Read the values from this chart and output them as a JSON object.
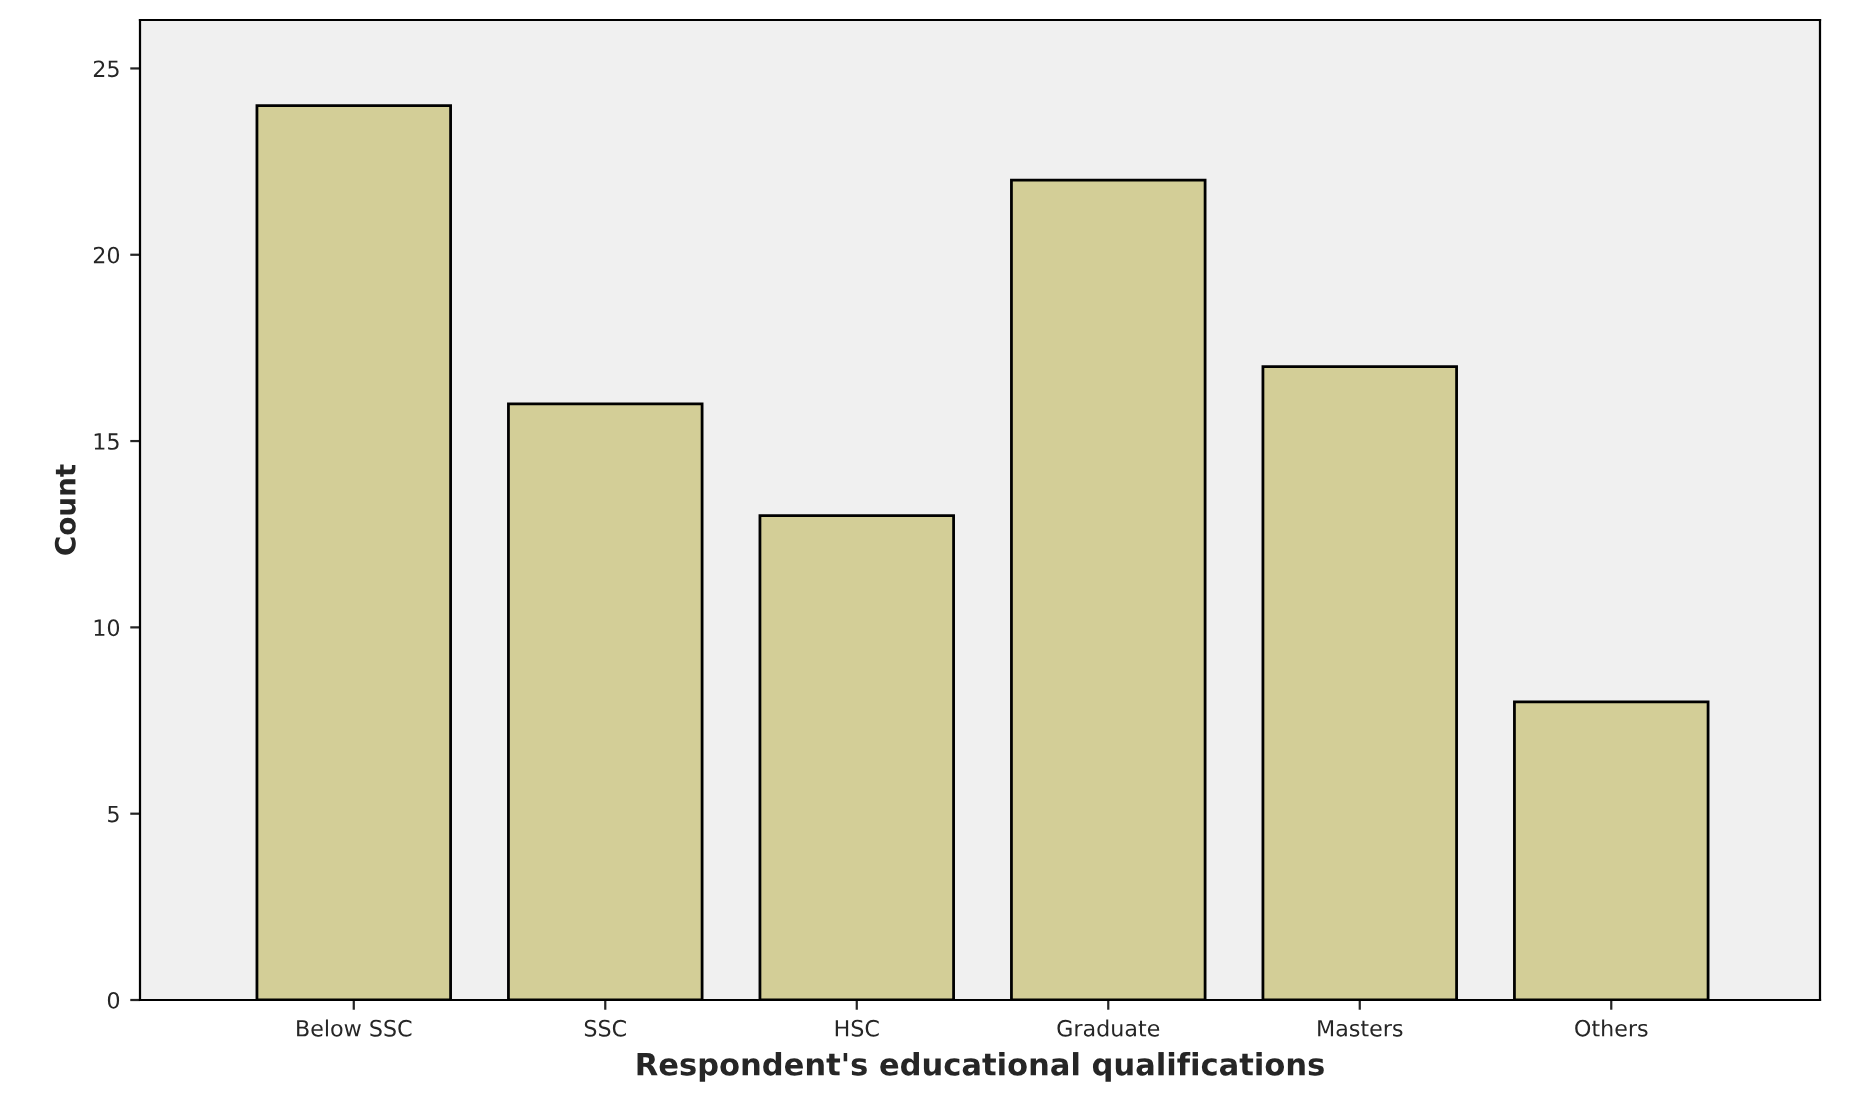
{
  "chart_data": {
    "type": "bar",
    "xlabel": "Respondent's educational qualifications",
    "ylabel": "Count",
    "categories": [
      "Below SSC",
      "SSC",
      "HSC",
      "Graduate",
      "Masters",
      "Others"
    ],
    "values": [
      24,
      16,
      13,
      22,
      17,
      8
    ],
    "color": "#d3ce97",
    "ylim": [
      0,
      26.3
    ],
    "yticks": [
      0,
      5,
      10,
      15,
      20,
      25
    ],
    "grid": false,
    "legend": false
  }
}
